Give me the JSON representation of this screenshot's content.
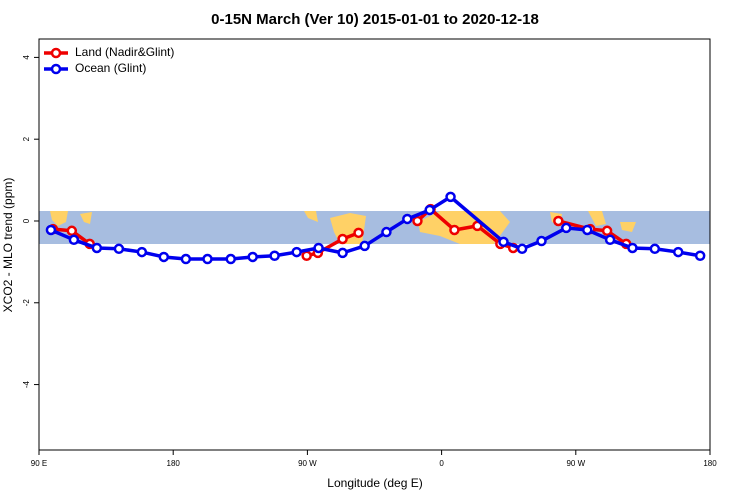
{
  "chart_data": {
    "type": "line",
    "title": "0-15N March (Ver 10)   2015-01-01 to 2020-12-18",
    "x_label": "Longitude (deg E)",
    "y_label": "XCO2 - MLO trend (ppm)",
    "xlim": [
      90,
      540
    ],
    "xticks": [
      {
        "value": 90,
        "label": "90 E"
      },
      {
        "value": 180,
        "label": "180"
      },
      {
        "value": 270,
        "label": "90 W"
      },
      {
        "value": 360,
        "label": "0"
      },
      {
        "value": 450,
        "label": "90 W"
      },
      {
        "value": 540,
        "label": "180"
      }
    ],
    "ylim": [
      -5.6,
      4.45
    ],
    "yticks": [
      -4,
      -2,
      0,
      2,
      4
    ],
    "legend": "top-left",
    "series": [
      {
        "name": "Land (Nadir&Glint)",
        "color": "#ee0000",
        "x": [
          99.4,
          112,
          124,
          null,
          269.5,
          277,
          293.6,
          304.3,
          null,
          343.8,
          352.6,
          368.6,
          384,
          399.4,
          408,
          null,
          438.3,
          459.7,
          471,
          483.8
        ],
        "values": [
          -0.2,
          -0.24,
          -0.56,
          null,
          -0.85,
          -0.78,
          -0.44,
          -0.29,
          null,
          0.0,
          0.29,
          -0.22,
          -0.12,
          -0.56,
          -0.66,
          null,
          0.0,
          -0.2,
          -0.24,
          -0.56
        ]
      },
      {
        "name": "Ocean (Glint)",
        "color": "#0000ee",
        "x": [
          98,
          113.4,
          128.8,
          143.6,
          159,
          173.7,
          188.5,
          203,
          218.6,
          233.3,
          248,
          262.8,
          277.5,
          293.6,
          308.4,
          323,
          337,
          352,
          366,
          401.5,
          414,
          427,
          443.6,
          457.7,
          473,
          488,
          503,
          518.7,
          533.4
        ],
        "values": [
          -0.22,
          -0.46,
          -0.66,
          -0.68,
          -0.76,
          -0.88,
          -0.93,
          -0.93,
          -0.93,
          -0.88,
          -0.85,
          -0.76,
          -0.66,
          -0.78,
          -0.61,
          -0.27,
          0.05,
          0.27,
          0.59,
          -0.51,
          -0.68,
          -0.49,
          -0.17,
          -0.22,
          -0.46,
          -0.66,
          -0.68,
          -0.76,
          -0.85
        ]
      }
    ]
  }
}
